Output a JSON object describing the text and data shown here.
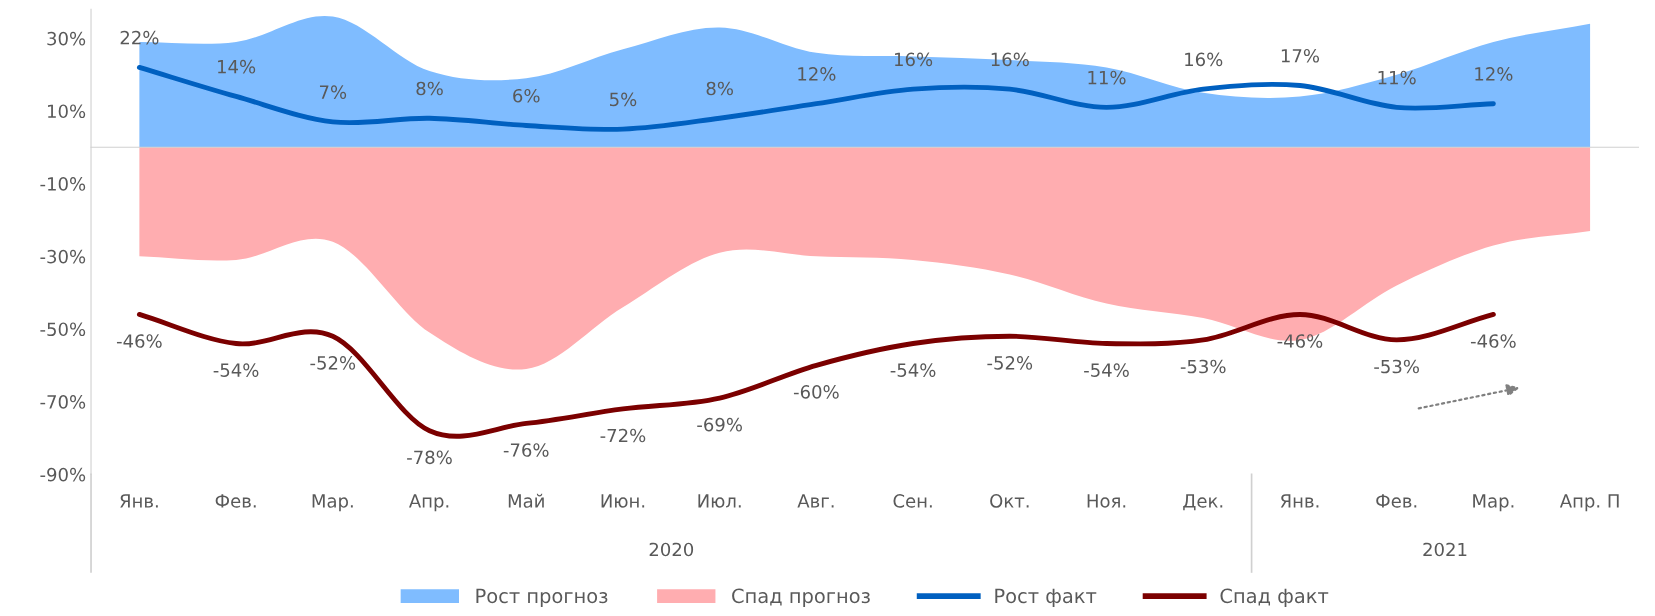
{
  "chart_data": {
    "type": "line",
    "categories": [
      "Янв.",
      "Фев.",
      "Мар.",
      "Апр.",
      "Май",
      "Июн.",
      "Июл.",
      "Авг.",
      "Сен.",
      "Окт.",
      "Ноя.",
      "Дек.",
      "Янв.",
      "Фев.",
      "Мар.",
      "Апр. П"
    ],
    "series": [
      {
        "name": "Рост прогноз",
        "type": "area",
        "color": "#7fbcff",
        "values": [
          29,
          29,
          36,
          21,
          19,
          27,
          33,
          26,
          25,
          24,
          22,
          15,
          14,
          20,
          29,
          34
        ]
      },
      {
        "name": "Спад прогноз",
        "type": "area",
        "color": "#ffadb0",
        "values": [
          -30,
          -31,
          -26,
          -51,
          -61,
          -44,
          -29,
          -30,
          -31,
          -35,
          -43,
          -47,
          -53,
          -38,
          -27,
          -23
        ]
      },
      {
        "name": "Рост факт",
        "color": "#0060c0",
        "values": [
          22,
          14,
          7,
          8,
          6,
          5,
          8,
          12,
          16,
          16,
          11,
          16,
          17,
          11,
          12,
          null
        ],
        "value_labels": [
          "22%",
          "14%",
          "7%",
          "8%",
          "6%",
          "5%",
          "8%",
          "12%",
          "16%",
          "16%",
          "11%",
          "16%",
          "17%",
          "11%",
          "12%",
          null
        ]
      },
      {
        "name": "Спад факт",
        "color": "#7b0000",
        "values": [
          -46,
          -54,
          -52,
          -78,
          -76,
          -72,
          -69,
          -60,
          -54,
          -52,
          -54,
          -53,
          -46,
          -53,
          -46,
          null
        ],
        "value_labels": [
          "-46%",
          "-54%",
          "-52%",
          "-78%",
          "-76%",
          "-72%",
          "-69%",
          "-60%",
          "-54%",
          "-52%",
          "-54%",
          "-53%",
          "-46%",
          "-53%",
          "-46%",
          null
        ]
      }
    ],
    "ylim": [
      -90,
      38
    ],
    "yticks": [
      {
        "value": 30,
        "label": "30%"
      },
      {
        "value": 10,
        "label": "10%"
      },
      {
        "value": -10,
        "label": "-10%"
      },
      {
        "value": -30,
        "label": "-30%"
      },
      {
        "value": -50,
        "label": "-50%"
      },
      {
        "value": -70,
        "label": "-70%"
      },
      {
        "value": -90,
        "label": "-90%"
      }
    ],
    "annotations": [
      "2020",
      "2021"
    ],
    "grid": false,
    "legend": "bottom"
  }
}
